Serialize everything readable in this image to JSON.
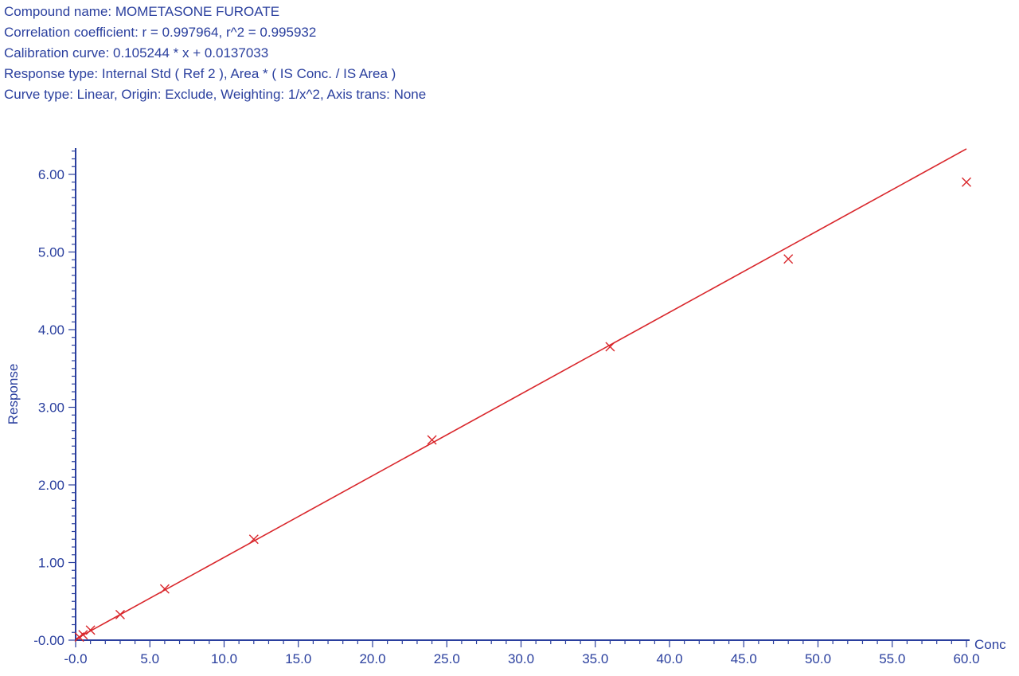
{
  "header": {
    "compound": "Compound name: MOMETASONE FUROATE",
    "correlation": "Correlation coefficient: r = 0.997964, r^2 = 0.995932",
    "calibration": "Calibration curve: 0.105244 * x + 0.0137033",
    "response_type": "Response type: Internal Std ( Ref 2 ), Area * ( IS Conc. / IS Area )",
    "curve_type": "Curve type: Linear, Origin: Exclude, Weighting: 1/x^2, Axis trans: None"
  },
  "chart_data": {
    "type": "scatter",
    "xlabel": "Conc",
    "ylabel": "Response",
    "xlim": [
      0,
      60
    ],
    "ylim": [
      0,
      6.35
    ],
    "x_ticks": [
      "-0.0",
      "5.0",
      "10.0",
      "15.0",
      "20.0",
      "25.0",
      "30.0",
      "35.0",
      "40.0",
      "45.0",
      "50.0",
      "55.0",
      "60.0"
    ],
    "y_ticks": [
      "-0.00",
      "1.00",
      "2.00",
      "3.00",
      "4.00",
      "5.00",
      "6.00"
    ],
    "points": [
      {
        "x": 0.25,
        "y": 0.04
      },
      {
        "x": 0.5,
        "y": 0.07
      },
      {
        "x": 1.0,
        "y": 0.13
      },
      {
        "x": 3.0,
        "y": 0.33
      },
      {
        "x": 6.0,
        "y": 0.66
      },
      {
        "x": 12.0,
        "y": 1.3
      },
      {
        "x": 24.0,
        "y": 2.58
      },
      {
        "x": 36.0,
        "y": 3.78
      },
      {
        "x": 48.0,
        "y": 4.91
      },
      {
        "x": 60.0,
        "y": 5.9
      }
    ],
    "fit_line": {
      "slope": 0.105244,
      "intercept": 0.0137033,
      "x_range": [
        0,
        60
      ]
    },
    "marker": "x",
    "colors": {
      "axis": "#2a3f9e",
      "data": "#d9262b"
    },
    "grid": false
  }
}
